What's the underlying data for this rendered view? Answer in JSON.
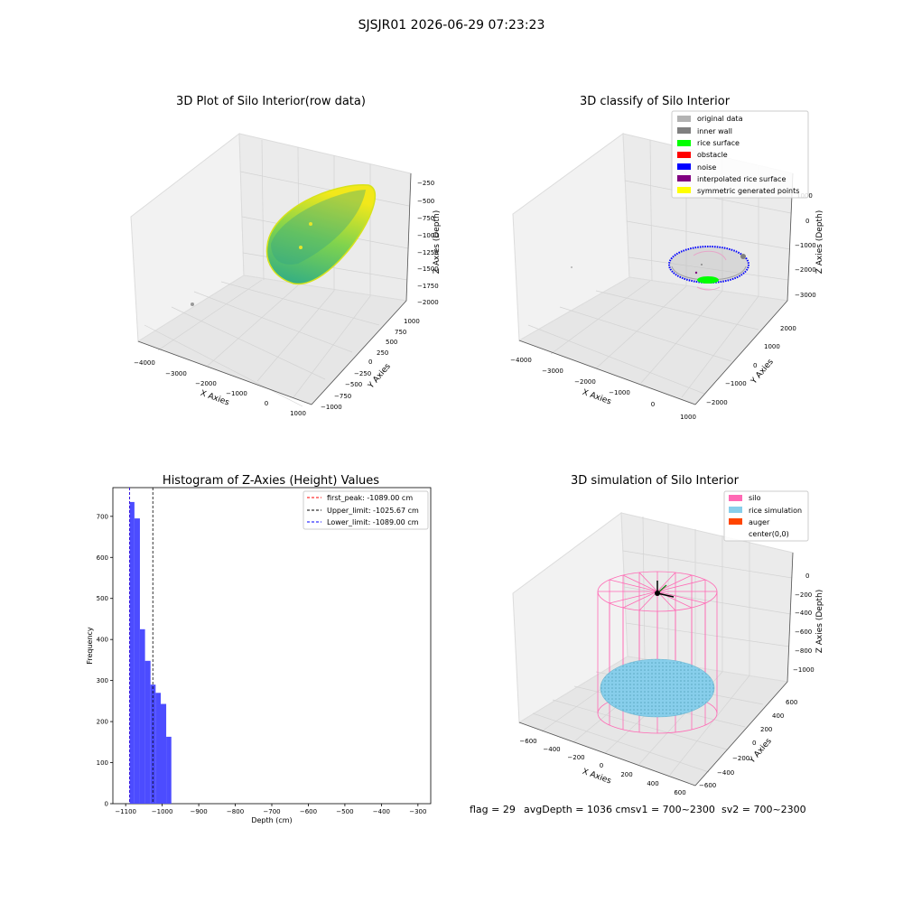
{
  "suptitle": "SJSJR01 2026-06-29 07:23:23",
  "status_line": {
    "flag": "flag = 29",
    "avg_depth": "avgDepth = 1036 cmsv1 = 700~2300",
    "sv2": "sv2 = 700~2300"
  },
  "chart_data": [
    {
      "type": "scatter",
      "title": "3D Plot of Silo Interior(row data)",
      "projection": "3d",
      "xlabel": "X Axies",
      "ylabel": "Y Axies",
      "zlabel": "Z Axies (Depth)",
      "xticks": [
        "−4000",
        "−3000",
        "−2000",
        "−1000",
        "0",
        "1000"
      ],
      "yticks": [
        "−1000",
        "−750",
        "−500",
        "−250",
        "0",
        "250",
        "500",
        "750",
        "1000"
      ],
      "zticks": [
        "−250",
        "−500",
        "−750",
        "−1000",
        "−1250",
        "−1500",
        "−1750",
        "−2000"
      ],
      "xlim": [
        -4200,
        1000
      ],
      "ylim": [
        -1000,
        1000
      ],
      "zlim": [
        -2100,
        -200
      ],
      "colormap": "viridis",
      "series": [
        {
          "shape": "bowl",
          "center": [
            250,
            0,
            -1100
          ],
          "radius": 650,
          "depth": 800,
          "color_low": "#29a98b",
          "color_high": "#f2e81a"
        },
        {
          "points": [
            [
              -3700,
              0,
              -1900
            ]
          ],
          "color": "#9a9a9a"
        }
      ]
    },
    {
      "type": "scatter",
      "title": "3D classify of Silo Interior",
      "projection": "3d",
      "xlabel": "X Axies",
      "ylabel": "Y Axies",
      "zlabel": "Z Axies (Depth)",
      "xticks": [
        "−4000",
        "−3000",
        "−2000",
        "−1000",
        "0",
        "1000"
      ],
      "yticks": [
        "−2000",
        "−1000",
        "0",
        "1000",
        "2000"
      ],
      "zticks": [
        "1000",
        "0",
        "−1000",
        "−2000",
        "−3000"
      ],
      "xlim": [
        -4200,
        1000
      ],
      "ylim": [
        -2500,
        2500
      ],
      "zlim": [
        -3300,
        1200
      ],
      "legend_position": "top-right",
      "series": [
        {
          "name": "original data",
          "color": "#b3b3b3",
          "points": [
            [
              0,
              0,
              -2300
            ],
            [
              -300,
              500,
              -1900
            ]
          ]
        },
        {
          "name": "inner wall",
          "color": "#808080",
          "points": [
            [
              600,
              0,
              -1700
            ]
          ]
        },
        {
          "name": "rice surface",
          "color": "#00ff00",
          "points": [
            [
              0,
              0,
              -1100
            ]
          ]
        },
        {
          "name": "obstacle",
          "color": "#ff0000",
          "points": []
        },
        {
          "name": "noise",
          "color": "#0000ff",
          "points": []
        },
        {
          "name": "interpolated rice surface",
          "color": "#800080",
          "points": [
            [
              -200,
              -200,
              -2300
            ]
          ]
        },
        {
          "name": "symmetric generated points",
          "color": "#ffff00",
          "points": []
        }
      ]
    },
    {
      "type": "bar",
      "title": "Histogram of Z-Axies (Height) Values",
      "xlabel": "Depth (cm)",
      "ylabel": "Frequency",
      "xlim": [
        -1135,
        -265
      ],
      "ylim": [
        0,
        770
      ],
      "xticks": [
        -1100,
        -1000,
        -900,
        -800,
        -700,
        -600,
        -500,
        -400,
        -300
      ],
      "xtick_labels": [
        "−1100",
        "−1000",
        "−900",
        "−800",
        "−700",
        "−600",
        "−500",
        "−400",
        "−300"
      ],
      "yticks": [
        0,
        100,
        200,
        300,
        400,
        500,
        600,
        700
      ],
      "ytick_labels": [
        "0",
        "100",
        "200",
        "300",
        "400",
        "500",
        "600",
        "700"
      ],
      "bins": [
        {
          "x0": -1089,
          "x1": -1076,
          "value": 735
        },
        {
          "x0": -1076,
          "x1": -1061,
          "value": 695
        },
        {
          "x0": -1061,
          "x1": -1047,
          "value": 425
        },
        {
          "x0": -1047,
          "x1": -1032,
          "value": 348
        },
        {
          "x0": -1032,
          "x1": -1018,
          "value": 290
        },
        {
          "x0": -1018,
          "x1": -1004,
          "value": 270
        },
        {
          "x0": -1004,
          "x1": -989,
          "value": 243
        },
        {
          "x0": -989,
          "x1": -975,
          "value": 163
        }
      ],
      "bar_color": "#4c4cff",
      "vlines": [
        {
          "label": "first_peak: -1089.00 cm",
          "x": -1089.0,
          "color": "#ff0000"
        },
        {
          "label": "Upper_limit: -1025.67 cm",
          "x": -1025.67,
          "color": "#000000"
        },
        {
          "label": "Lower_limit: -1089.00 cm",
          "x": -1089.0,
          "color": "#0000ff"
        }
      ],
      "legend_position": "top-right"
    },
    {
      "type": "scatter",
      "title": "3D simulation of Silo Interior",
      "projection": "3d",
      "xlabel": "X Axies",
      "ylabel": "Y Axies",
      "zlabel": "Z Axies (Depth)",
      "xticks": [
        "−600",
        "−400",
        "−200",
        "0",
        "200",
        "400",
        "600"
      ],
      "yticks": [
        "−600",
        "−400",
        "−200",
        "0",
        "200",
        "400",
        "600"
      ],
      "zticks": [
        "0",
        "−200",
        "−400",
        "−600",
        "−800",
        "−1000"
      ],
      "xlim": [
        -700,
        700
      ],
      "ylim": [
        -700,
        700
      ],
      "zlim": [
        -1300,
        100
      ],
      "legend_position": "top-right",
      "series": [
        {
          "name": "silo",
          "color": "#ff69b4",
          "radius": 600,
          "z_top": 0,
          "z_bottom": -1100
        },
        {
          "name": "rice simulation",
          "color": "#87ceeb",
          "z": -1036
        },
        {
          "name": "auger",
          "color": "#ff4500"
        },
        {
          "name": "center(0,0)",
          "color": "#000000",
          "point": [
            0,
            0,
            0
          ]
        }
      ]
    }
  ]
}
